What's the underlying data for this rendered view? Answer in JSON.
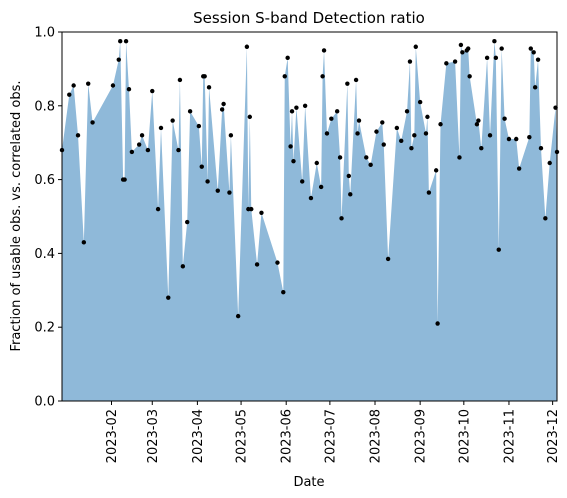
{
  "chart_data": {
    "type": "area",
    "title": "Session S-band Detection ratio",
    "xlabel": "Date",
    "ylabel": "Fraction of usable obs. vs. correlated obs.",
    "x": [
      -2,
      3,
      6,
      9,
      13,
      16,
      19,
      33,
      37,
      38,
      40,
      41,
      42,
      44,
      46,
      51,
      53,
      57,
      60,
      64,
      66,
      71,
      74,
      78,
      79,
      81,
      84,
      86,
      92,
      94,
      95,
      96,
      98,
      99,
      105,
      108,
      109,
      113,
      114,
      119,
      125,
      126,
      127,
      128,
      132,
      135,
      146,
      150,
      151,
      153,
      155,
      156,
      157,
      159,
      163,
      165,
      169,
      173,
      176,
      177,
      178,
      180,
      183,
      187,
      189,
      190,
      194,
      195,
      196,
      200,
      201,
      202,
      207,
      210,
      214,
      218,
      219,
      222,
      228,
      231,
      235,
      237,
      238,
      240,
      241,
      244,
      248,
      249,
      250,
      255,
      256,
      258,
      262,
      268,
      271,
      272,
      273,
      276,
      277,
      278,
      283,
      284,
      286,
      290,
      292,
      295,
      296,
      298,
      300,
      302,
      305,
      310,
      312,
      319,
      320,
      322,
      323,
      325,
      327,
      330,
      333,
      337,
      338
    ],
    "values": [
      0.68,
      0.83,
      0.855,
      0.72,
      0.43,
      0.86,
      0.755,
      0.855,
      0.925,
      0.975,
      0.6,
      0.6,
      0.975,
      0.845,
      0.675,
      0.695,
      0.72,
      0.68,
      0.84,
      0.52,
      0.74,
      0.28,
      0.76,
      0.68,
      0.87,
      0.365,
      0.485,
      0.785,
      0.745,
      0.635,
      0.88,
      0.88,
      0.595,
      0.85,
      0.57,
      0.79,
      0.805,
      0.565,
      0.72,
      0.23,
      0.96,
      0.52,
      0.77,
      0.52,
      0.37,
      0.51,
      0.375,
      0.295,
      0.88,
      0.93,
      0.69,
      0.785,
      0.65,
      0.795,
      0.595,
      0.8,
      0.55,
      0.645,
      0.58,
      0.88,
      0.95,
      0.725,
      0.765,
      0.785,
      0.66,
      0.495,
      0.86,
      0.61,
      0.56,
      0.87,
      0.725,
      0.76,
      0.66,
      0.64,
      0.73,
      0.755,
      0.695,
      0.385,
      0.74,
      0.705,
      0.785,
      0.92,
      0.685,
      0.72,
      0.96,
      0.81,
      0.725,
      0.77,
      0.565,
      0.625,
      0.21,
      0.75,
      0.915,
      0.92,
      0.66,
      0.965,
      0.945,
      0.95,
      0.955,
      0.88,
      0.75,
      0.76,
      0.685,
      0.93,
      0.72,
      0.975,
      0.93,
      0.41,
      0.955,
      0.765,
      0.71,
      0.71,
      0.63,
      0.715,
      0.955,
      0.945,
      0.85,
      0.925,
      0.685,
      0.495,
      0.645,
      0.795,
      0.675
    ],
    "color": "#8fb9d9",
    "marker_color": "#000000",
    "xlim": [
      -2,
      338
    ],
    "ylim": [
      0,
      1
    ],
    "xticks": [
      {
        "value": 32,
        "label": "2023-02"
      },
      {
        "value": 60,
        "label": "2023-03"
      },
      {
        "value": 91,
        "label": "2023-04"
      },
      {
        "value": 121,
        "label": "2023-05"
      },
      {
        "value": 152,
        "label": "2023-06"
      },
      {
        "value": 182,
        "label": "2023-07"
      },
      {
        "value": 213,
        "label": "2023-08"
      },
      {
        "value": 244,
        "label": "2023-09"
      },
      {
        "value": 274,
        "label": "2023-10"
      },
      {
        "value": 305,
        "label": "2023-11"
      },
      {
        "value": 335,
        "label": "2023-12"
      }
    ],
    "yticks": [
      {
        "value": 0,
        "label": "0.0"
      },
      0.2,
      0.4,
      0.6,
      0.8,
      {
        "value": 1,
        "label": "1.0"
      }
    ]
  }
}
